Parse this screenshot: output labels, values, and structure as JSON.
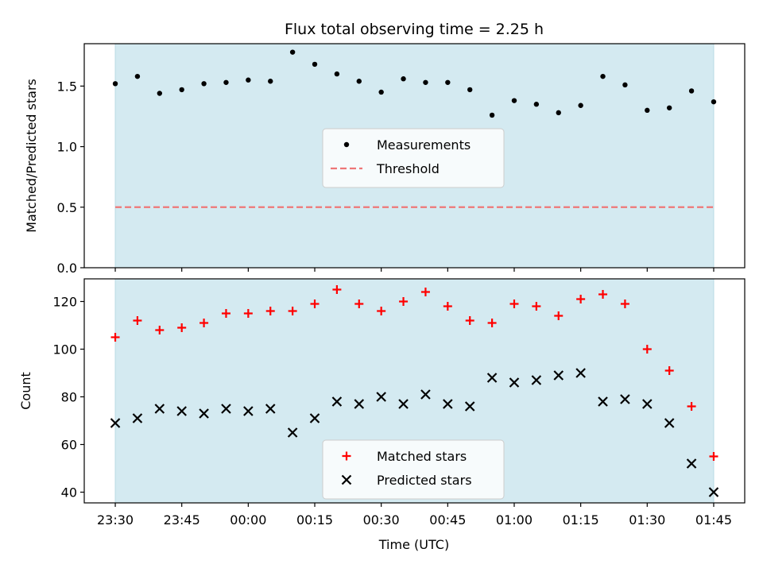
{
  "chart_data": {
    "title": "Flux total observing time = 2.25 h",
    "xlabel": "Time (UTC)",
    "x_ticks": [
      "23:30",
      "23:45",
      "00:00",
      "00:15",
      "00:30",
      "00:45",
      "01:00",
      "01:15",
      "01:30",
      "01:45"
    ],
    "x": [
      "23:30",
      "23:35",
      "23:40",
      "23:45",
      "23:50",
      "23:55",
      "00:00",
      "00:05",
      "00:10",
      "00:15",
      "00:20",
      "00:25",
      "00:30",
      "00:35",
      "00:40",
      "00:45",
      "00:50",
      "00:55",
      "01:00",
      "01:05",
      "01:10",
      "01:15",
      "01:20",
      "01:25",
      "01:30",
      "01:35",
      "01:40",
      "01:45"
    ],
    "x_range": [
      "23:23",
      "01:52"
    ],
    "observing_window": [
      "23:30",
      "01:45"
    ],
    "window_color": "#d4eaf1",
    "panels": [
      {
        "type": "scatter",
        "ylabel": "Matched/Predicted stars",
        "ylim": [
          0,
          1.85
        ],
        "y_ticks": [
          "0.0",
          "0.5",
          "1.0",
          "1.5"
        ],
        "series": [
          {
            "name": "Measurements",
            "marker": "dot",
            "color": "#000000",
            "values": [
              1.52,
              1.58,
              1.44,
              1.47,
              1.52,
              1.53,
              1.55,
              1.54,
              1.78,
              1.68,
              1.6,
              1.54,
              1.45,
              1.56,
              1.53,
              1.53,
              1.47,
              1.26,
              1.38,
              1.35,
              1.28,
              1.34,
              1.58,
              1.51,
              1.3,
              1.32,
              1.46,
              1.37
            ]
          }
        ],
        "threshold": {
          "name": "Threshold",
          "value": 0.5,
          "color": "#ee7777",
          "style": "dashed"
        },
        "legend": "center"
      },
      {
        "type": "scatter",
        "ylabel": "Count",
        "ylim": [
          35.5,
          129.5
        ],
        "y_ticks": [
          "40",
          "60",
          "80",
          "100",
          "120"
        ],
        "series": [
          {
            "name": "Matched stars",
            "marker": "plus",
            "color": "#ff0000",
            "values": [
              105,
              112,
              108,
              109,
              111,
              115,
              115,
              116,
              116,
              119,
              125,
              119,
              116,
              120,
              124,
              118,
              112,
              111,
              119,
              118,
              114,
              121,
              123,
              119,
              100,
              91,
              76,
              55
            ]
          },
          {
            "name": "Predicted stars",
            "marker": "x",
            "color": "#000000",
            "values": [
              69,
              71,
              75,
              74,
              73,
              75,
              74,
              75,
              65,
              71,
              78,
              77,
              80,
              77,
              81,
              77,
              76,
              88,
              86,
              87,
              89,
              90,
              78,
              79,
              77,
              69,
              52,
              40
            ]
          }
        ],
        "legend": "lower-center"
      }
    ]
  }
}
